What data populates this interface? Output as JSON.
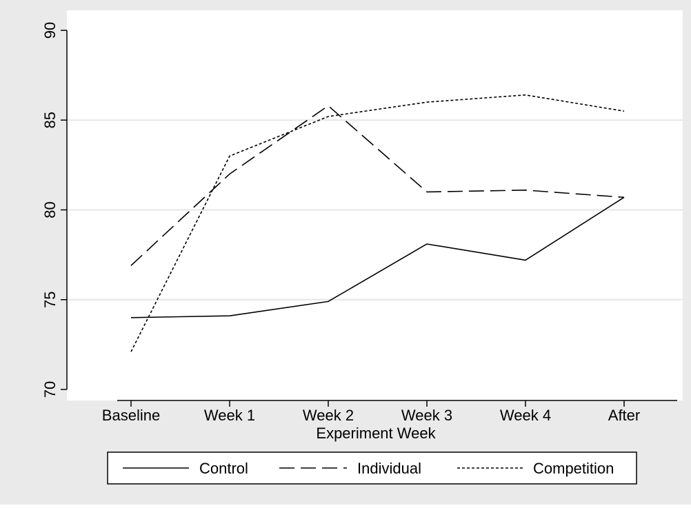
{
  "colors": {
    "outer_background": "#eaeaea",
    "plot_background": "#ffffff",
    "gridline": "#e6e6e6",
    "axis": "#000000",
    "series": "#000000"
  },
  "chart_data": {
    "type": "line",
    "title": "",
    "xlabel": "Experiment Week",
    "ylabel": "",
    "categories": [
      "Baseline",
      "Week 1",
      "Week 2",
      "Week 3",
      "Week 4",
      "After"
    ],
    "ylim": [
      70,
      90
    ],
    "yticks": [
      70,
      75,
      80,
      85,
      90
    ],
    "grid": true,
    "legend_position": "bottom",
    "series": [
      {
        "name": "Control",
        "dash": "solid",
        "values": [
          74.0,
          74.1,
          74.9,
          78.1,
          77.2,
          80.7
        ]
      },
      {
        "name": "Individual",
        "dash": "longdash",
        "values": [
          76.9,
          82.0,
          85.8,
          81.0,
          81.1,
          80.7
        ]
      },
      {
        "name": "Competition",
        "dash": "shortdash",
        "values": [
          72.1,
          83.0,
          85.2,
          86.0,
          86.4,
          85.5
        ]
      }
    ]
  }
}
